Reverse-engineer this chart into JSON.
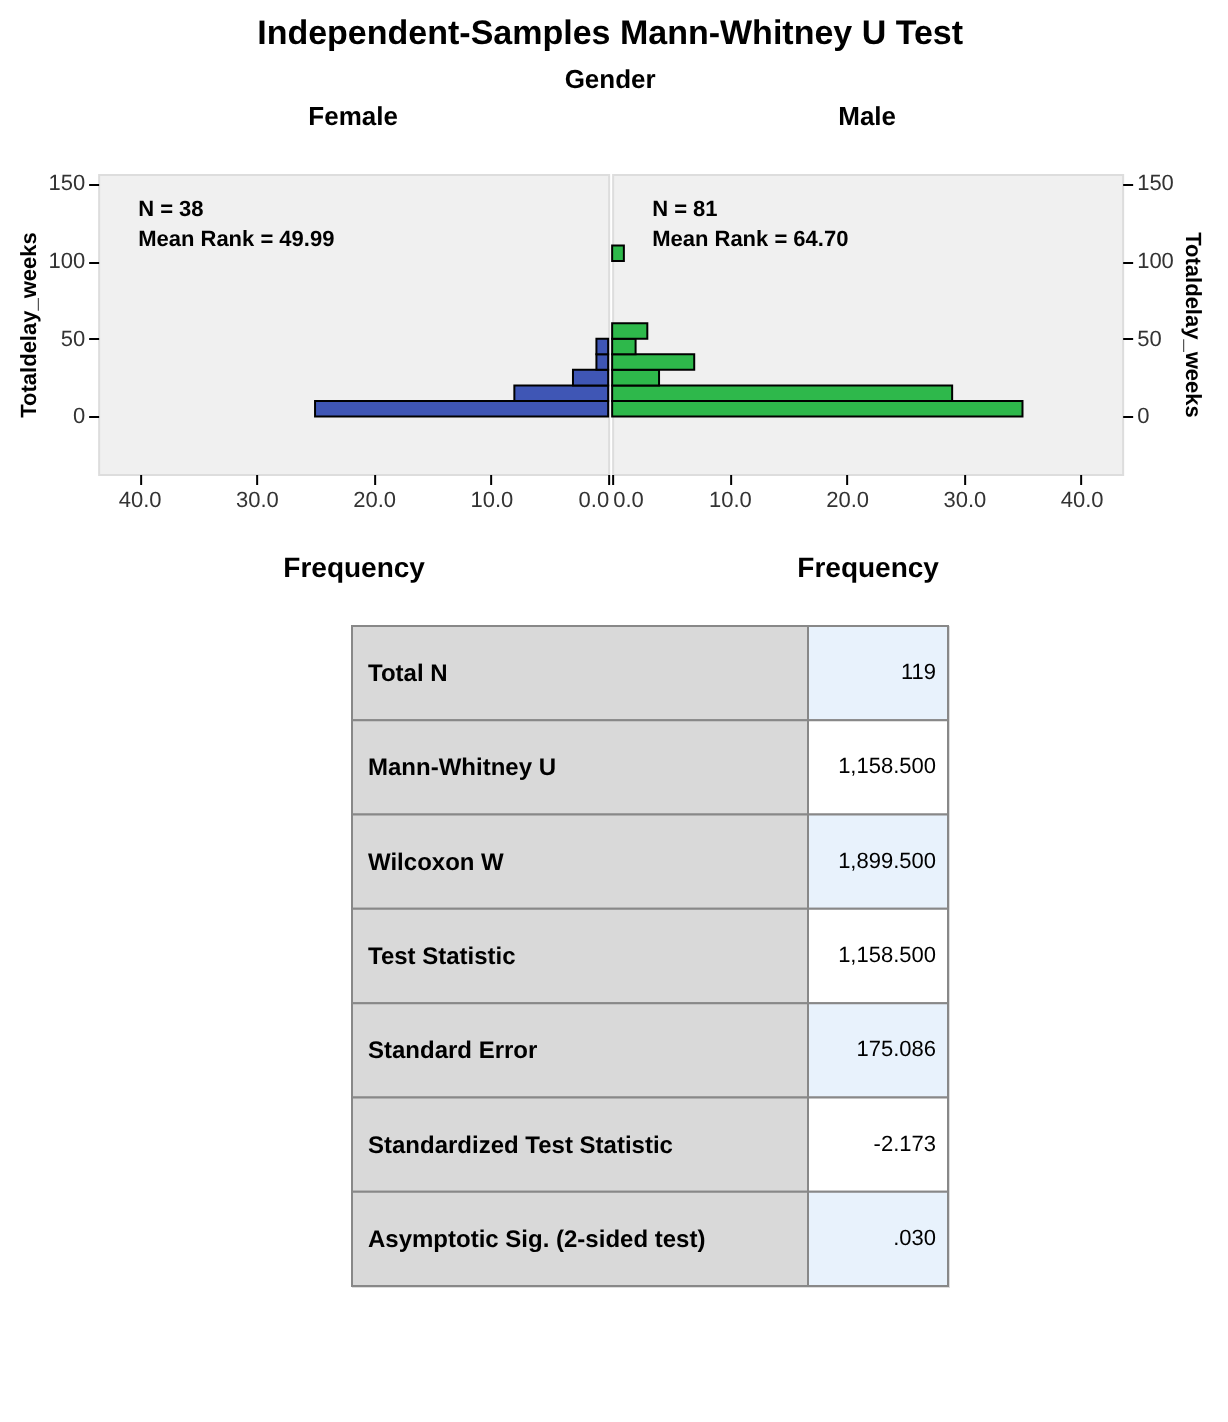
{
  "chart_data": [
    {
      "type": "histogram",
      "title": "Independent-Samples Mann-Whitney U Test",
      "subtitle": "Gender",
      "orientation": "horizontal",
      "xlabel": "Frequency",
      "ylabel": "Totaldelay_weeks",
      "bins": [
        0,
        10,
        20,
        30,
        40,
        50
      ],
      "series": [
        {
          "name": "Female",
          "color": "#3f56b5",
          "values": [
            25,
            8,
            3,
            1,
            1
          ]
        }
      ],
      "xlim": [
        43.5,
        0
      ],
      "xticks": [
        {
          "value": 40,
          "label": "40.0"
        },
        {
          "value": 30,
          "label": "30.0"
        },
        {
          "value": 20,
          "label": "20.0"
        },
        {
          "value": 10,
          "label": "10.0"
        },
        {
          "value": 0,
          "label": "0.0"
        }
      ],
      "ylim": [
        -37,
        156
      ],
      "yticks": [
        0,
        50,
        100,
        150
      ],
      "grid": false,
      "annotations": [
        "N = 38",
        "Mean Rank = 49.99"
      ]
    },
    {
      "type": "histogram",
      "orientation": "horizontal",
      "xlabel": "Frequency",
      "ylabel": "Totaldelay_weeks",
      "bins": [
        0,
        10,
        20,
        30,
        40,
        50,
        60,
        70,
        80,
        90,
        100,
        110
      ],
      "series": [
        {
          "name": "Male",
          "color": "#2eb84b",
          "values": [
            35,
            29,
            4,
            7,
            2,
            3,
            0,
            0,
            0,
            0,
            1
          ]
        }
      ],
      "xlim": [
        0,
        43.5
      ],
      "xticks": [
        {
          "value": 0,
          "label": "0.0"
        },
        {
          "value": 10,
          "label": "10.0"
        },
        {
          "value": 20,
          "label": "20.0"
        },
        {
          "value": 30,
          "label": "30.0"
        },
        {
          "value": 40,
          "label": "40.0"
        }
      ],
      "ylim": [
        -37,
        156
      ],
      "yticks": [
        0,
        50,
        100,
        150
      ],
      "grid": false,
      "annotations": [
        "N = 81",
        "Mean Rank = 64.70"
      ]
    },
    {
      "type": "other",
      "categories": [
        "Total N",
        "Mann-Whitney U",
        "Wilcoxon W",
        "Test Statistic",
        "Standard Error",
        "Standardized Test Statistic",
        "Asymptotic Sig. (2-sided test)"
      ],
      "value_labels": [
        "119",
        "1,158.500",
        "1,899.500",
        "1,158.500",
        "175.086",
        "-2.173",
        ".030"
      ]
    }
  ]
}
